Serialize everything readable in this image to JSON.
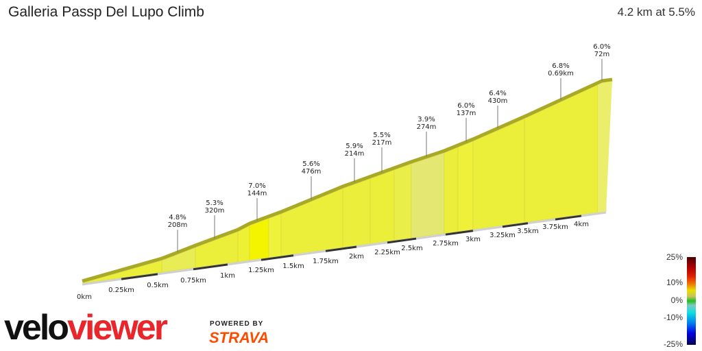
{
  "header": {
    "title": "Galleria Passp Del Lupo Climb",
    "summary": "4.2 km at 5.5%"
  },
  "chart_data": {
    "type": "area",
    "title": "Galleria Passp Del Lupo Climb",
    "xlabel": "",
    "ylabel": "",
    "x_ticks": [
      "0km",
      "0.25km",
      "0.5km",
      "0.75km",
      "1km",
      "1.25km",
      "1.5km",
      "1.75km",
      "2km",
      "2.25km",
      "2.5km",
      "2.75km",
      "3km",
      "3.25km",
      "3.5km",
      "3.75km",
      "4km"
    ],
    "annotations": [
      {
        "grade": "4.8%",
        "length": "208m"
      },
      {
        "grade": "5.3%",
        "length": "320m"
      },
      {
        "grade": "7.0%",
        "length": "144m"
      },
      {
        "grade": "5.6%",
        "length": "476m"
      },
      {
        "grade": "5.9%",
        "length": "214m"
      },
      {
        "grade": "5.5%",
        "length": "217m"
      },
      {
        "grade": "3.9%",
        "length": "274m"
      },
      {
        "grade": "6.0%",
        "length": "137m"
      },
      {
        "grade": "6.4%",
        "length": "430m"
      },
      {
        "grade": "6.8%",
        "length": "0.69km"
      },
      {
        "grade": "6.0%",
        "length": "72m"
      }
    ],
    "legend": {
      "labels": [
        "25%",
        "10%",
        "0%",
        "-10%",
        "-25%"
      ],
      "placement": "bottom-right"
    }
  },
  "colors": {
    "fill": "#ecef3a",
    "steep": "#f4f400",
    "gentle": "#e4e872",
    "edge": "#a9a925"
  },
  "branding": {
    "logo_velo": "velo",
    "logo_viewer": "viewer",
    "powered_by": "POWERED BY",
    "strava": "STRAVA"
  }
}
